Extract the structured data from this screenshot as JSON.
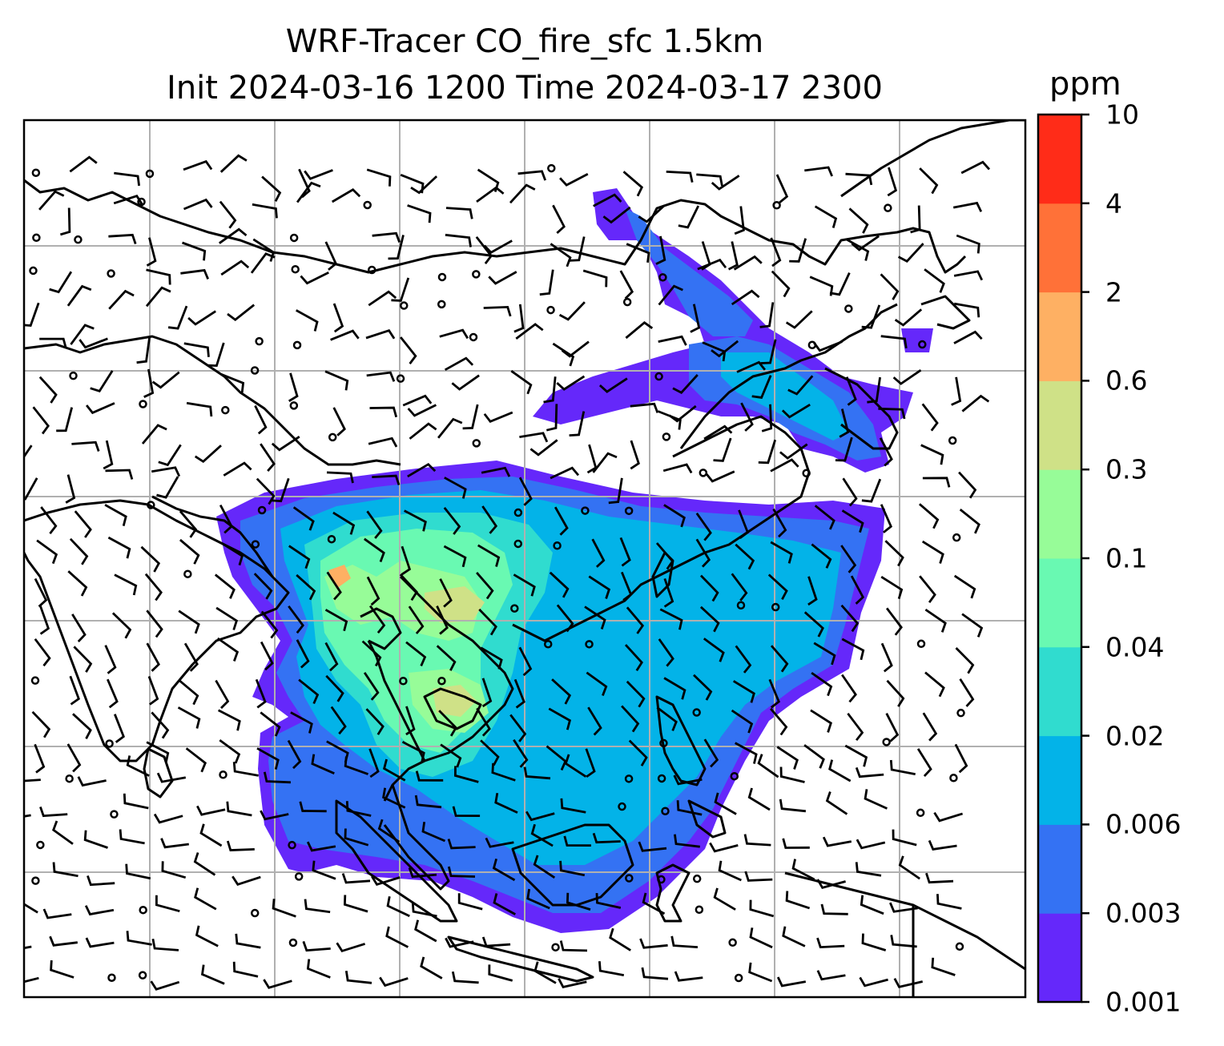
{
  "title_line1": "WRF-Tracer CO_fire_sfc 1.5km",
  "title_line2": "Init 2024-03-16 1200 Time 2024-03-17 2300",
  "colorbar": {
    "unit": "ppm",
    "tick_labels": [
      "0.001",
      "0.003",
      "0.006",
      "0.02",
      "0.04",
      "0.1",
      "0.3",
      "0.6",
      "2",
      "4",
      "10"
    ],
    "colors": [
      "#6528fa",
      "#3472f3",
      "#03b3e8",
      "#30dccf",
      "#69f9b2",
      "#97fc98",
      "#cfe187",
      "#feb063",
      "#ff7138",
      "#ff2c18"
    ]
  },
  "map": {
    "projection_note_visible": false,
    "gridlines": true,
    "features": [
      "coastlines",
      "country-borders",
      "wind-barbs",
      "calm-circles",
      "filled-contours"
    ]
  }
}
